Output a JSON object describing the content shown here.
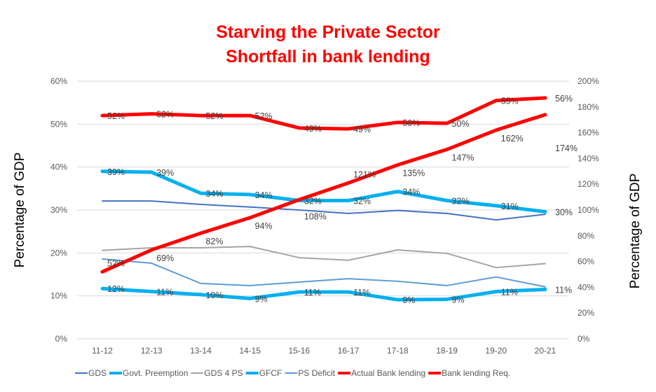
{
  "chart_data": {
    "type": "line",
    "title": [
      "Starving the Private Sector",
      "Shortfall in bank lending"
    ],
    "categories": [
      "11-12",
      "12-13",
      "13-14",
      "14-15",
      "15-16",
      "16-17",
      "17-18",
      "18-19",
      "19-20",
      "20-21"
    ],
    "ylabel": "Percentage of GDP",
    "y2label": "Percentage of GDP",
    "ylim": [
      0,
      60
    ],
    "y2lim": [
      0,
      200
    ],
    "yticks": [
      "0%",
      "10%",
      "20%",
      "30%",
      "40%",
      "50%",
      "60%"
    ],
    "y2ticks": [
      "0%",
      "20%",
      "40%",
      "60%",
      "80%",
      "100%",
      "120%",
      "140%",
      "160%",
      "180%",
      "200%"
    ],
    "grid": true,
    "legend_position": "bottom",
    "series": [
      {
        "name": "GDS",
        "axis": "left",
        "color": "#4472C4",
        "width": 2,
        "values": [
          32.1,
          32.1,
          31.3,
          30.7,
          30.0,
          29.2,
          29.9,
          29.2,
          27.7,
          29.0
        ],
        "labels": null
      },
      {
        "name": "Govt. Preemption",
        "axis": "left",
        "color": "#00B0F0",
        "width": 5,
        "values": [
          39,
          38.8,
          33.9,
          33.6,
          32.2,
          32.2,
          34.3,
          32.2,
          31.0,
          29.6
        ],
        "labels": [
          "39%",
          "39%",
          "34%",
          "34%",
          "32%",
          "32%",
          "34%",
          "32%",
          "31%",
          "30%"
        ]
      },
      {
        "name": "GDS 4 PS",
        "axis": "left",
        "color": "#A5A5A5",
        "width": 2,
        "values": [
          20.6,
          21.2,
          21.2,
          21.5,
          18.9,
          18.3,
          20.7,
          19.9,
          16.6,
          17.5
        ],
        "labels": null
      },
      {
        "name": "GFCF",
        "axis": "left",
        "color": "#00B0F0",
        "width": 5,
        "values": [
          11.7,
          11.0,
          10.3,
          9.4,
          10.9,
          10.9,
          9.1,
          9.2,
          11.0,
          11.5
        ],
        "labels": [
          "12%",
          "11%",
          "10%",
          "9%",
          "11%",
          "11%",
          "9%",
          "9%",
          "11%",
          "11%"
        ]
      },
      {
        "name": "PS Deficit",
        "axis": "left",
        "color": "#5B9BD5",
        "width": 2,
        "values": [
          18.6,
          17.6,
          12.9,
          12.4,
          13.2,
          14.0,
          13.4,
          12.4,
          14.4,
          12.1
        ],
        "labels": null
      },
      {
        "name": "Actual Bank lending",
        "axis": "left",
        "color": "#FF0000",
        "width": 5,
        "values": [
          52.0,
          52.4,
          52.0,
          52.0,
          49.1,
          48.9,
          50.4,
          50.2,
          55.5,
          56.1
        ],
        "labels": [
          "52%",
          "52%",
          "52%",
          "52%",
          "49%",
          "49%",
          "50%",
          "50%",
          "55%",
          "56%"
        ]
      },
      {
        "name": "Bank lending Req.",
        "axis": "right",
        "color": "#FF0000",
        "width": 5,
        "values": [
          52,
          69,
          82,
          94,
          108,
          121,
          135,
          147,
          162,
          174
        ],
        "labels": [
          "52%",
          "69%",
          "82%",
          "94%",
          "108%",
          "121%",
          "135%",
          "147%",
          "162%",
          "174%"
        ]
      }
    ]
  }
}
